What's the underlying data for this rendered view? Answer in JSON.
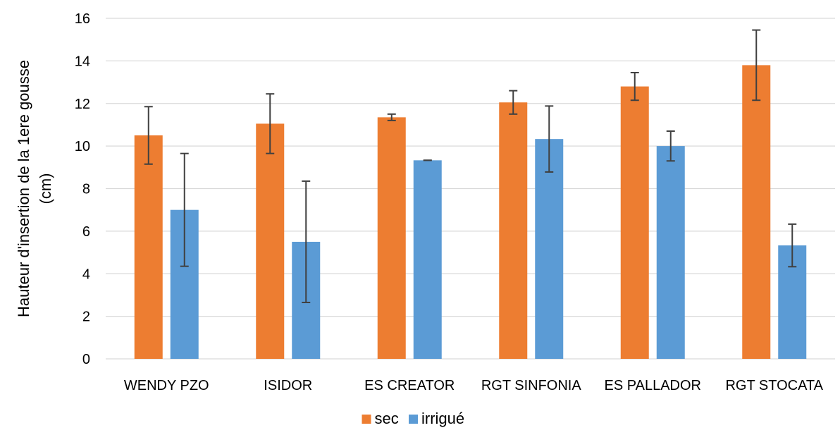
{
  "chart_data": {
    "type": "bar",
    "title": "",
    "xlabel": "",
    "ylabel_lines": [
      "Hauteur d'insertion de la 1ere gousse",
      "(cm)"
    ],
    "ylim": [
      0,
      16
    ],
    "yticks": [
      0,
      2,
      4,
      6,
      8,
      10,
      12,
      14,
      16
    ],
    "grid": true,
    "legend_position": "bottom",
    "categories": [
      "WENDY PZO",
      "ISIDOR",
      "ES CREATOR",
      "RGT SINFONIA",
      "ES PALLADOR",
      "RGT STOCATA"
    ],
    "series": [
      {
        "name": "sec",
        "color": "#ED7D31",
        "values": [
          10.5,
          11.05,
          11.35,
          12.05,
          12.8,
          13.8
        ],
        "error": [
          1.35,
          1.4,
          0.15,
          0.55,
          0.65,
          1.65
        ]
      },
      {
        "name": "irrigué",
        "color": "#5B9BD5",
        "values": [
          7.0,
          5.5,
          9.33,
          10.33,
          10.0,
          5.33
        ],
        "error": [
          2.65,
          2.85,
          0.0,
          1.55,
          0.7,
          1.0
        ]
      }
    ],
    "gridline_color": "#D9D9D9",
    "errorbar_color": "#404040"
  }
}
